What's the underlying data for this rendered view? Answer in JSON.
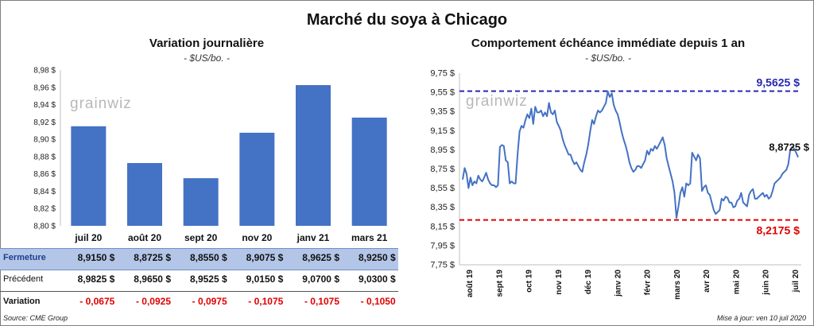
{
  "title": "Marché du soya à Chicago",
  "watermark": "grainwiz",
  "footer": {
    "source": "Source: CME Group",
    "update": "Mise à jour: ven 10 juil 2020"
  },
  "chart_data": [
    {
      "type": "bar",
      "title": "Variation journalière",
      "unit": "- $US/bo. -",
      "categories": [
        "juil 20",
        "août 20",
        "sept 20",
        "nov 20",
        "janv 21",
        "mars 21"
      ],
      "values": [
        8.915,
        8.8725,
        8.855,
        8.9075,
        8.9625,
        8.925
      ],
      "ylim": [
        8.8,
        8.98
      ],
      "yticks": [
        "8,80 $",
        "8,82 $",
        "8,84 $",
        "8,86 $",
        "8,88 $",
        "8,90 $",
        "8,92 $",
        "8,94 $",
        "8,96 $",
        "8,98 $"
      ],
      "bar_color": "#4472c4",
      "table": {
        "rows": [
          {
            "label": "Fermeture",
            "values": [
              "8,9150  $",
              "8,8725  $",
              "8,8550  $",
              "8,9075  $",
              "8,9625  $",
              "8,9250  $"
            ]
          },
          {
            "label": "Précédent",
            "values": [
              "8,9825  $",
              "8,9650  $",
              "8,9525  $",
              "9,0150  $",
              "9,0700  $",
              "9,0300  $"
            ]
          },
          {
            "label": "Variation",
            "values": [
              "- 0,0675",
              "- 0,0925",
              "- 0,0975",
              "- 0,1075",
              "- 0,1075",
              "- 0,1050"
            ]
          }
        ],
        "highlight_color": "#b4c6e7",
        "negative_color": "#e00000"
      }
    },
    {
      "type": "line",
      "title": "Comportement  échéance immédiate depuis 1 an",
      "unit": "- $US/bo. -",
      "ylim": [
        7.75,
        9.75
      ],
      "yticks": [
        "7,75 $",
        "7,95 $",
        "8,15 $",
        "8,35 $",
        "8,55 $",
        "8,75 $",
        "8,95 $",
        "9,15 $",
        "9,35 $",
        "9,55 $",
        "9,75 $"
      ],
      "x_labels": [
        "août 19",
        "sept 19",
        "oct 19",
        "nov 19",
        "déc 19",
        "janv 20",
        "févr 20",
        "mars 20",
        "avr 20",
        "mai 20",
        "juin 20",
        "juil 20"
      ],
      "line_color": "#4472c4",
      "values": [
        8.64,
        8.76,
        8.7,
        8.55,
        8.66,
        8.58,
        8.62,
        8.6,
        8.68,
        8.64,
        8.62,
        8.66,
        8.71,
        8.64,
        8.6,
        8.58,
        8.58,
        8.56,
        8.58,
        8.98,
        9.0,
        8.99,
        8.84,
        8.82,
        8.6,
        8.62,
        8.6,
        8.6,
        8.9,
        9.14,
        9.2,
        9.18,
        9.26,
        9.32,
        9.28,
        9.38,
        9.22,
        9.4,
        9.34,
        9.34,
        9.36,
        9.3,
        9.34,
        9.3,
        9.44,
        9.34,
        9.32,
        9.36,
        9.24,
        9.2,
        9.15,
        9.06,
        9.0,
        8.95,
        8.9,
        8.9,
        8.84,
        8.8,
        8.82,
        8.78,
        8.74,
        8.72,
        8.82,
        8.9,
        9.0,
        9.14,
        9.26,
        9.22,
        9.3,
        9.36,
        9.34,
        9.36,
        9.4,
        9.44,
        9.56,
        9.5,
        9.54,
        9.42,
        9.36,
        9.32,
        9.24,
        9.14,
        9.06,
        9.0,
        8.92,
        8.82,
        8.76,
        8.72,
        8.74,
        8.78,
        8.78,
        8.76,
        8.8,
        8.84,
        8.94,
        8.9,
        8.96,
        8.94,
        8.99,
        8.96,
        9.0,
        9.04,
        9.08,
        9.0,
        8.86,
        8.78,
        8.7,
        8.62,
        8.5,
        8.24,
        8.36,
        8.5,
        8.56,
        8.46,
        8.6,
        8.58,
        8.6,
        8.92,
        8.88,
        8.84,
        8.9,
        8.86,
        8.52,
        8.56,
        8.58,
        8.5,
        8.48,
        8.4,
        8.32,
        8.28,
        8.3,
        8.32,
        8.44,
        8.42,
        8.46,
        8.45,
        8.4,
        8.4,
        8.35,
        8.36,
        8.42,
        8.44,
        8.5,
        8.4,
        8.38,
        8.36,
        8.48,
        8.52,
        8.54,
        8.44,
        8.44,
        8.46,
        8.48,
        8.5,
        8.46,
        8.48,
        8.44,
        8.46,
        8.52,
        8.6,
        8.62,
        8.64,
        8.66,
        8.7,
        8.72,
        8.74,
        8.8,
        8.95,
        8.98,
        8.96,
        8.92,
        8.8725
      ],
      "max_line": {
        "value": 9.5625,
        "label": "9,5625  $",
        "color": "#2828b4"
      },
      "min_line": {
        "value": 8.2175,
        "label": "8,2175  $",
        "color": "#e00000"
      },
      "last_label": "8,8725  $"
    }
  ]
}
